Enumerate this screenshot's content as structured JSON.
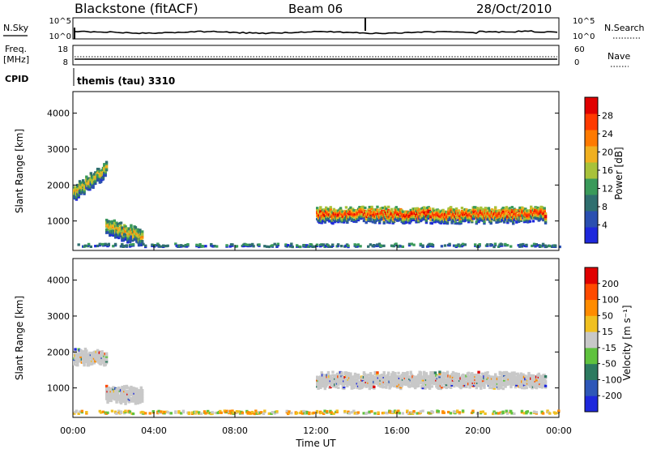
{
  "header": {
    "site": "Blackstone (fitACF)",
    "beam": "Beam 06",
    "date": "28/Oct/2010"
  },
  "status_panels": {
    "nsky": {
      "left_label": "N.Sky",
      "left_ticks": [
        "10^5",
        "10^0"
      ],
      "right_label": "N.Search",
      "right_ticks": [
        "10^5",
        "10^0"
      ]
    },
    "freq": {
      "left_label_1": "Freq.",
      "left_label_2": "[MHz]",
      "left_ticks": [
        "18",
        "8"
      ],
      "right_label": "Nave",
      "right_ticks": [
        "60",
        "0"
      ]
    },
    "cpid": {
      "label": "CPID",
      "text": "themis (tau) 3310"
    }
  },
  "colors": {
    "power": [
      "#1e28dc",
      "#2a4fb0",
      "#2f6f6f",
      "#3a9a5a",
      "#a8c23a",
      "#f0b020",
      "#ff7a00",
      "#ff3a00",
      "#e00000"
    ],
    "velocity": [
      "#1e28dc",
      "#2e57b8",
      "#2d7a60",
      "#5fc23e",
      "#c8c8c8",
      "#f0c020",
      "#ff8c00",
      "#ff4a00",
      "#e00000"
    ],
    "ground_scatter": "#c8c8c8"
  },
  "colorbars": {
    "power": {
      "label": "Power [dB]",
      "ticks": [
        "28",
        "24",
        "20",
        "16",
        "12",
        "8",
        "4"
      ]
    },
    "velocity": {
      "label": "Velocity [m s⁻¹]",
      "ticks": [
        "200",
        "100",
        "50",
        "15",
        "-15",
        "-50",
        "-100",
        "-200"
      ]
    }
  },
  "chart_data": [
    {
      "type": "heatmap",
      "name": "power",
      "title": "",
      "ylabel": "Slant Range [km]",
      "xlabel": "",
      "xlim": [
        0,
        24
      ],
      "ylim": [
        180,
        4600
      ],
      "yticks": [
        "1000",
        "2000",
        "3000",
        "4000"
      ],
      "xticks": [
        "00:00",
        "04:00",
        "08:00",
        "12:00",
        "16:00",
        "20:00",
        "00:00"
      ],
      "scatter_regions": [
        {
          "t0": 0.0,
          "t1": 1.6,
          "center_km": 1750,
          "width_km": 350,
          "peak_db": 20,
          "trend_km_per_hr": 420
        },
        {
          "t0": 1.6,
          "t1": 3.4,
          "center_km": 800,
          "width_km": 400,
          "peak_db": 20,
          "trend_km_per_hr": -150
        },
        {
          "t0": 0.0,
          "t1": 24.0,
          "center_km": 250,
          "width_km": 60,
          "peak_db": 10,
          "trend_km_per_hr": 0
        },
        {
          "t0": 12.0,
          "t1": 23.3,
          "center_km": 1150,
          "width_km": 350,
          "peak_db": 30,
          "trend_km_per_hr": 0
        }
      ],
      "cbar": "power"
    },
    {
      "type": "heatmap",
      "name": "velocity",
      "title": "",
      "ylabel": "Slant Range [km]",
      "xlabel": "Time UT",
      "xlim": [
        0,
        24
      ],
      "ylim": [
        180,
        4600
      ],
      "yticks": [
        "1000",
        "2000",
        "3000",
        "4000"
      ],
      "xticks": [
        "00:00",
        "04:00",
        "08:00",
        "12:00",
        "16:00",
        "20:00",
        "00:00"
      ],
      "scatter_regions": [
        {
          "t0": 0.0,
          "t1": 1.6,
          "center_km": 1850,
          "width_km": 350,
          "velocity": 0
        },
        {
          "t0": 1.6,
          "t1": 3.4,
          "center_km": 800,
          "width_km": 400,
          "velocity": 0
        },
        {
          "t0": 0.0,
          "t1": 24.0,
          "center_km": 250,
          "width_km": 60,
          "velocity": 30
        },
        {
          "t0": 12.0,
          "t1": 23.3,
          "center_km": 1200,
          "width_km": 350,
          "velocity": 0
        }
      ],
      "cbar": "velocity"
    }
  ]
}
